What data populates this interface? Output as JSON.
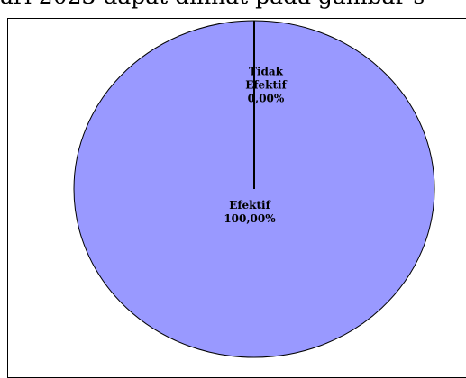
{
  "document": {
    "header_fragment": "ari 2023 dapat dilihat pada gambar s"
  },
  "chart_data": {
    "type": "pie",
    "categories": [
      "Tidak Efektif",
      "Efektif"
    ],
    "values": [
      0.0,
      100.0
    ],
    "data_labels": [
      [
        "Tidak",
        "Efektif",
        "0,00%"
      ],
      [
        "Efektif",
        "100,00%"
      ]
    ],
    "colors": {
      "Tidak Efektif": "#9999ff",
      "Efektif": "#9999ff",
      "slice_border": "#000000"
    },
    "legend": "none",
    "grid": false
  }
}
